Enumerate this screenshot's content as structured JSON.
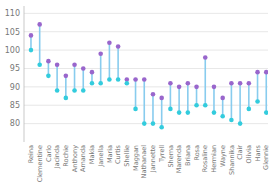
{
  "chart_data": {
    "type": "dumbbell",
    "categories": [
      "Reina",
      "Clementine",
      "Carlo",
      "Jacinda",
      "Rochie",
      "Anthony",
      "Amanda",
      "Makia",
      "Janella",
      "Maria",
      "Curtis",
      "Shellie",
      "Maggan",
      "Nathanael",
      "Jannette",
      "Tyrell",
      "Shema",
      "Marenda",
      "Briana",
      "Rosa",
      "Rosaline",
      "Hermian",
      "Wayne",
      "Shannika",
      "Clair",
      "Olivia",
      "Hans",
      "Glennie"
    ],
    "series": [
      {
        "color": "#9966cc",
        "values": [
          104,
          107,
          97,
          96,
          93,
          96,
          95,
          94,
          99,
          102,
          101,
          92,
          92,
          92,
          88,
          87,
          91,
          90,
          91,
          90,
          98,
          90,
          87,
          91,
          91,
          91,
          94,
          94
        ]
      },
      {
        "color": "#33ccdd",
        "values": [
          100,
          96,
          93,
          89,
          87,
          89,
          89,
          91,
          91,
          92,
          92,
          91,
          84,
          80,
          80,
          79,
          84,
          83,
          83,
          85,
          85,
          83,
          82,
          81,
          80,
          84,
          86,
          83
        ]
      }
    ],
    "color": "#88ccee",
    "ylim": [
      75,
      112
    ],
    "yticks": [
      80,
      85,
      90,
      95,
      100,
      105,
      110
    ],
    "grid": true
  }
}
